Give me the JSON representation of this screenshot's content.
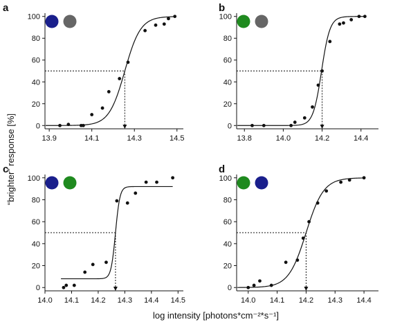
{
  "figure": {
    "xlabel": "log intensity [photons*cm⁻²*s⁻¹]",
    "ylabel": "“brighter” response [%]",
    "colors": {
      "blue": "#1a1f8c",
      "grey": "#666666",
      "green": "#1f8a1f"
    }
  },
  "chart_data": [
    {
      "panel": "a",
      "type": "scatter",
      "stimulus_colors": [
        "blue",
        "grey"
      ],
      "xlim": [
        13.88,
        14.53
      ],
      "ylim": [
        -3,
        103
      ],
      "xticks": [
        13.9,
        14.1,
        14.3,
        14.5
      ],
      "xtick_labels": [
        "13.9",
        "14.1",
        "14.3",
        "14.5"
      ],
      "yticks": [
        0,
        20,
        40,
        60,
        80,
        100
      ],
      "points": [
        [
          13.95,
          0
        ],
        [
          13.99,
          1
        ],
        [
          14.05,
          0
        ],
        [
          14.06,
          0
        ],
        [
          14.1,
          10
        ],
        [
          14.15,
          16
        ],
        [
          14.18,
          31
        ],
        [
          14.23,
          43
        ],
        [
          14.27,
          58
        ],
        [
          14.35,
          87
        ],
        [
          14.4,
          92
        ],
        [
          14.44,
          93
        ],
        [
          14.46,
          98
        ],
        [
          14.49,
          100
        ]
      ],
      "curve": {
        "type": "logistic",
        "x50": 14.255,
        "k": 27,
        "min": 0,
        "max": 100
      },
      "threshold_x": 14.255,
      "threshold_y": 50
    },
    {
      "panel": "b",
      "type": "scatter",
      "stimulus_colors": [
        "green",
        "grey"
      ],
      "xlim": [
        13.76,
        14.49
      ],
      "ylim": [
        -3,
        103
      ],
      "xticks": [
        13.8,
        14.0,
        14.2,
        14.4
      ],
      "xtick_labels": [
        "13.8",
        "14.0",
        "14.2",
        "14.4"
      ],
      "yticks": [
        0,
        20,
        40,
        60,
        80,
        100
      ],
      "points": [
        [
          13.84,
          0
        ],
        [
          13.9,
          0
        ],
        [
          14.04,
          0
        ],
        [
          14.06,
          3
        ],
        [
          14.11,
          7
        ],
        [
          14.15,
          17
        ],
        [
          14.18,
          37
        ],
        [
          14.2,
          50
        ],
        [
          14.24,
          77
        ],
        [
          14.29,
          93
        ],
        [
          14.31,
          94
        ],
        [
          14.35,
          97
        ],
        [
          14.39,
          100
        ],
        [
          14.42,
          100
        ]
      ],
      "curve": {
        "type": "logistic",
        "x50": 14.197,
        "k": 46,
        "min": 0,
        "max": 100
      },
      "threshold_x": 14.2,
      "threshold_y": 50
    },
    {
      "panel": "c",
      "type": "scatter",
      "stimulus_colors": [
        "blue",
        "green"
      ],
      "xlim": [
        14.0,
        14.52
      ],
      "ylim": [
        -3,
        103
      ],
      "xticks": [
        14.0,
        14.1,
        14.2,
        14.3,
        14.4,
        14.5
      ],
      "xtick_labels": [
        "14.0",
        "14.1",
        "14.2",
        "14.3",
        "14.4",
        "14.5"
      ],
      "yticks": [
        0,
        20,
        40,
        60,
        80,
        100
      ],
      "points": [
        [
          14.07,
          0
        ],
        [
          14.08,
          2
        ],
        [
          14.11,
          2
        ],
        [
          14.15,
          14
        ],
        [
          14.18,
          21
        ],
        [
          14.23,
          23
        ],
        [
          14.27,
          79
        ],
        [
          14.31,
          77
        ],
        [
          14.34,
          86
        ],
        [
          14.38,
          96
        ],
        [
          14.42,
          96
        ],
        [
          14.48,
          100
        ]
      ],
      "curve": {
        "type": "logistic",
        "x50": 14.265,
        "k": 120,
        "min": 8,
        "max": 92,
        "x_from": 14.06,
        "x_to": 14.48
      },
      "threshold_x": 14.265,
      "threshold_y": 50
    },
    {
      "panel": "d",
      "type": "scatter",
      "stimulus_colors": [
        "green",
        "blue"
      ],
      "xlim": [
        13.96,
        14.45
      ],
      "ylim": [
        -3,
        103
      ],
      "xticks": [
        14.0,
        14.1,
        14.2,
        14.3,
        14.4
      ],
      "xtick_labels": [
        "14.0",
        "14.1",
        "14.2",
        "14.3",
        "14.4"
      ],
      "yticks": [
        0,
        20,
        40,
        60,
        80,
        100
      ],
      "points": [
        [
          14.0,
          0
        ],
        [
          14.02,
          2
        ],
        [
          14.04,
          6
        ],
        [
          14.08,
          2
        ],
        [
          14.13,
          23
        ],
        [
          14.17,
          25
        ],
        [
          14.19,
          45
        ],
        [
          14.21,
          60
        ],
        [
          14.24,
          77
        ],
        [
          14.27,
          88
        ],
        [
          14.32,
          96
        ],
        [
          14.35,
          98
        ],
        [
          14.4,
          100
        ]
      ],
      "curve": {
        "type": "logistic",
        "x50": 14.2,
        "k": 33,
        "min": 0,
        "max": 100
      },
      "threshold_x": 14.2,
      "threshold_y": 50
    }
  ]
}
